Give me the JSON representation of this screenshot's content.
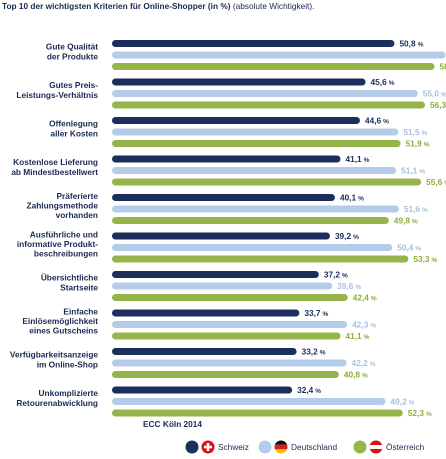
{
  "header": {
    "title_bold": "Top 10 der wichtigsten Kriterien für Online-Shopper (in %)",
    "title_normal": "(absolute Wichtigkeit)."
  },
  "source": "ECC Köln 2014",
  "legend": [
    {
      "name": "Schweiz",
      "color": "#1c2e5c",
      "flag": "swiss-flag-icon"
    },
    {
      "name": "Deutschland",
      "color": "#b4cce9",
      "flag": "german-flag-icon"
    },
    {
      "name": "Österreich",
      "color": "#95b54a",
      "flag": "austrian-flag-icon"
    }
  ],
  "chart_data": {
    "type": "bar",
    "orientation": "horizontal",
    "title": "Top 10 der wichtigsten Kriterien für Online-Shopper (in %)",
    "unit": "%",
    "categories": [
      [
        "Gute Qualität",
        "der Produkte"
      ],
      [
        "Gutes Preis-",
        "Leistungs-Verhältnis"
      ],
      [
        "Offenlegung",
        "aller Kosten"
      ],
      [
        "Kostenlose Lieferung",
        "ab Mindestbestellwert"
      ],
      [
        "Präferierte",
        "Zahlungsmethode",
        "vorhanden"
      ],
      [
        "Ausführliche und",
        "informative Produkt-",
        "beschreibungen"
      ],
      [
        "Übersichtliche",
        "Startseite"
      ],
      [
        "Einfache",
        "Einlösemöglichkeit",
        "eines Gutscheins"
      ],
      [
        "Verfügbarkeitsanzeige",
        "im Online-Shop"
      ],
      [
        "Unkomplizierte",
        "Retourenabwicklung"
      ]
    ],
    "series": [
      {
        "name": "Schweiz",
        "color": "#1c2e5c",
        "label_color": "#1c2e5c",
        "values": [
          50.8,
          45.6,
          44.6,
          41.1,
          40.1,
          39.2,
          37.2,
          33.7,
          33.2,
          32.4
        ]
      },
      {
        "name": "Deutschland",
        "color": "#b4cce9",
        "label_color": "#a6bfe0",
        "values": [
          60.0,
          55.0,
          51.5,
          51.1,
          51.6,
          50.4,
          39.6,
          42.3,
          42.2,
          49.2
        ]
      },
      {
        "name": "Österreich",
        "color": "#95b54a",
        "label_color": "#8caf3c",
        "values": [
          58.0,
          56.3,
          51.9,
          55.6,
          49.8,
          53.3,
          42.4,
          41.1,
          40.8,
          52.3
        ]
      }
    ],
    "value_labels": [
      [
        "50,8",
        "60,0",
        "58,0"
      ],
      [
        "45,6",
        "55,0",
        "56,3"
      ],
      [
        "44,6",
        "51,5",
        "51,9"
      ],
      [
        "41,1",
        "51,1",
        "55,6"
      ],
      [
        "40,1",
        "51,6",
        "49,8"
      ],
      [
        "39,2",
        "50,4",
        "53,3"
      ],
      [
        "37,2",
        "39,6",
        "42,4"
      ],
      [
        "33,7",
        "42,3",
        "41,1"
      ],
      [
        "33,2",
        "42,2",
        "40,8"
      ],
      [
        "32,4",
        "49,2",
        "52,3"
      ]
    ],
    "xlim": [
      0,
      60
    ],
    "grid": false,
    "legend_position": "bottom"
  }
}
